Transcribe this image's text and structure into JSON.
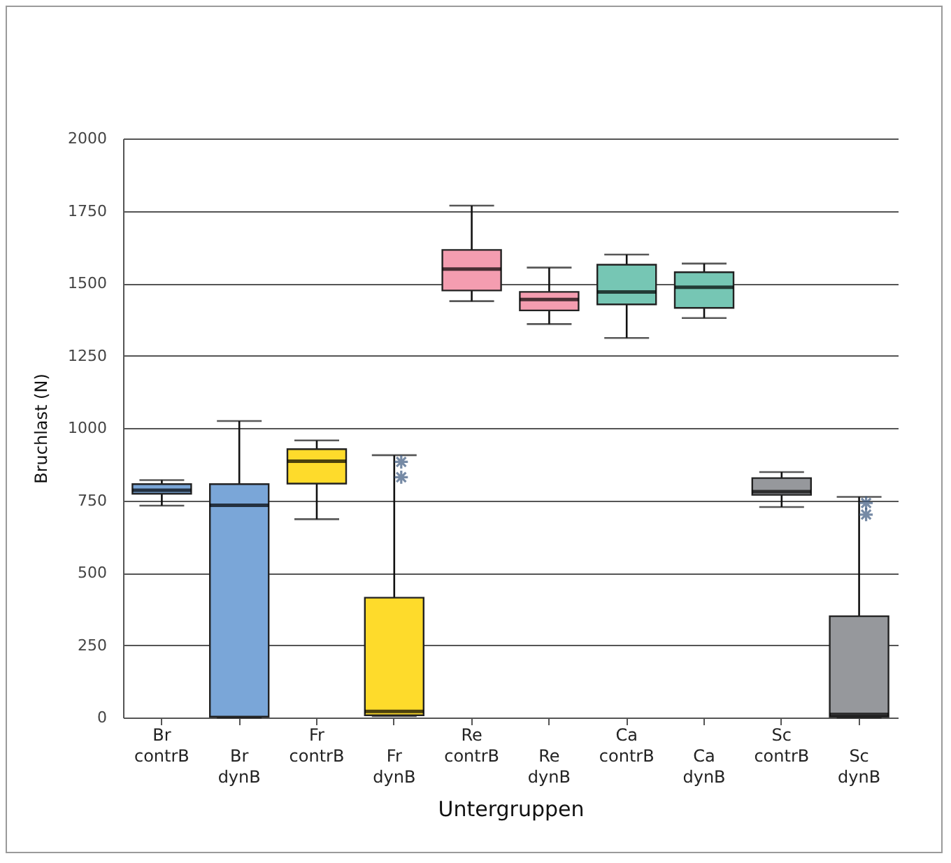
{
  "chart_data": {
    "type": "box",
    "xlabel": "Untergruppen",
    "ylabel": "Bruchlast (N)",
    "categories": [
      "Br contrB",
      "Br dynB",
      "Fr contrB",
      "Fr dynB",
      "Re contrB",
      "Re dynB",
      "Ca contrB",
      "Ca dynB",
      "Sc contrB",
      "Sc dynB"
    ],
    "boxes": [
      {
        "low": 732,
        "q1": 773,
        "median": 785,
        "q3": 806,
        "high": 820
      },
      {
        "low": 0,
        "q1": 3,
        "median": 733,
        "q3": 806,
        "high": 1024
      },
      {
        "low": 685,
        "q1": 808,
        "median": 885,
        "q3": 927,
        "high": 957
      },
      {
        "low": 5,
        "q1": 8,
        "median": 21,
        "q3": 414,
        "high": 906,
        "outliers": [
          883,
          830
        ]
      },
      {
        "low": 1438,
        "q1": 1475,
        "median": 1549,
        "q3": 1615,
        "high": 1768
      },
      {
        "low": 1359,
        "q1": 1406,
        "median": 1444,
        "q3": 1470,
        "high": 1554
      },
      {
        "low": 1311,
        "q1": 1427,
        "median": 1470,
        "q3": 1564,
        "high": 1599
      },
      {
        "low": 1380,
        "q1": 1415,
        "median": 1486,
        "q3": 1538,
        "high": 1568
      },
      {
        "low": 727,
        "q1": 769,
        "median": 780,
        "q3": 827,
        "high": 848
      },
      {
        "low": 0,
        "q1": 3,
        "median": 11,
        "q3": 350,
        "high": 762,
        "outliers": [
          741,
          701
        ]
      }
    ],
    "colors": [
      "#7aa6d8",
      "#7aa6d8",
      "#fedb2b",
      "#fedb2b",
      "#f49db0",
      "#f49db0",
      "#76c6b4",
      "#76c6b4",
      "#96989c",
      "#96989c"
    ],
    "ylim": [
      0,
      2000
    ],
    "yticks": [
      0,
      250,
      500,
      750,
      1000,
      1250,
      1500,
      1750,
      2000
    ],
    "grid": "y"
  }
}
